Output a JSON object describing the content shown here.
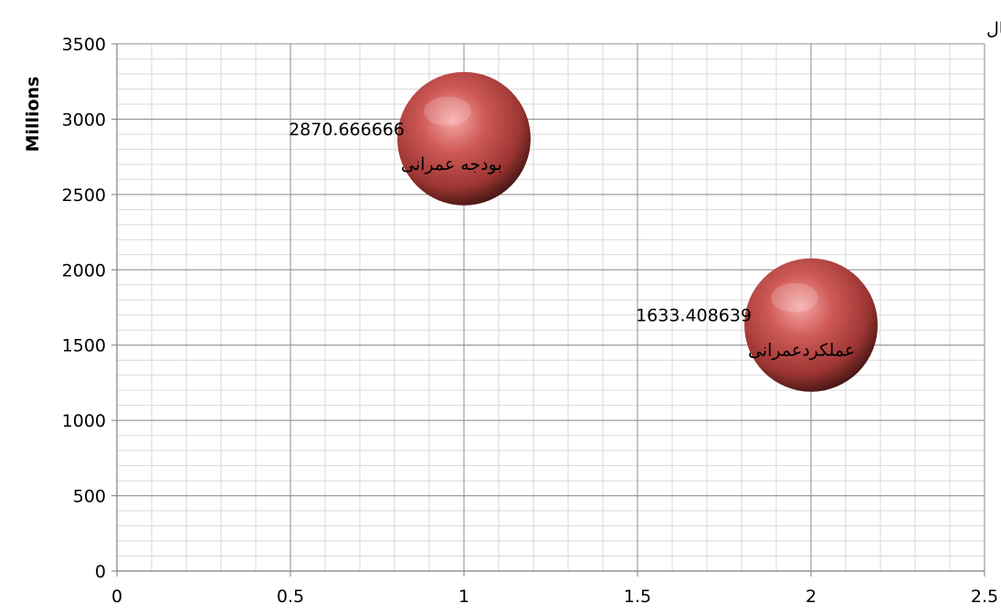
{
  "chart_data": {
    "type": "bubble",
    "unit_note": "ارقام به هزار ریال",
    "ylabel": "Millions",
    "xlabel": "",
    "xlim": [
      0,
      2.5
    ],
    "ylim": [
      0,
      3500
    ],
    "x_major_step": 0.5,
    "x_minor_step": 0.1,
    "y_major_step": 500,
    "y_minor_step": 100,
    "x_ticks": [
      "0",
      "0.5",
      "1",
      "1.5",
      "2",
      "2.5"
    ],
    "y_ticks": [
      "0",
      "500",
      "1000",
      "1500",
      "2000",
      "2500",
      "3000",
      "3500"
    ],
    "grid": true,
    "points": [
      {
        "x": 1,
        "y": 2870.666666,
        "value_label": "2870.666666",
        "name": "بودجه عمرانی",
        "color": "#c0504d"
      },
      {
        "x": 2,
        "y": 1633.408639,
        "value_label": "1633.408639",
        "name": "عملکردعمرانی",
        "color": "#c0504d"
      }
    ]
  }
}
